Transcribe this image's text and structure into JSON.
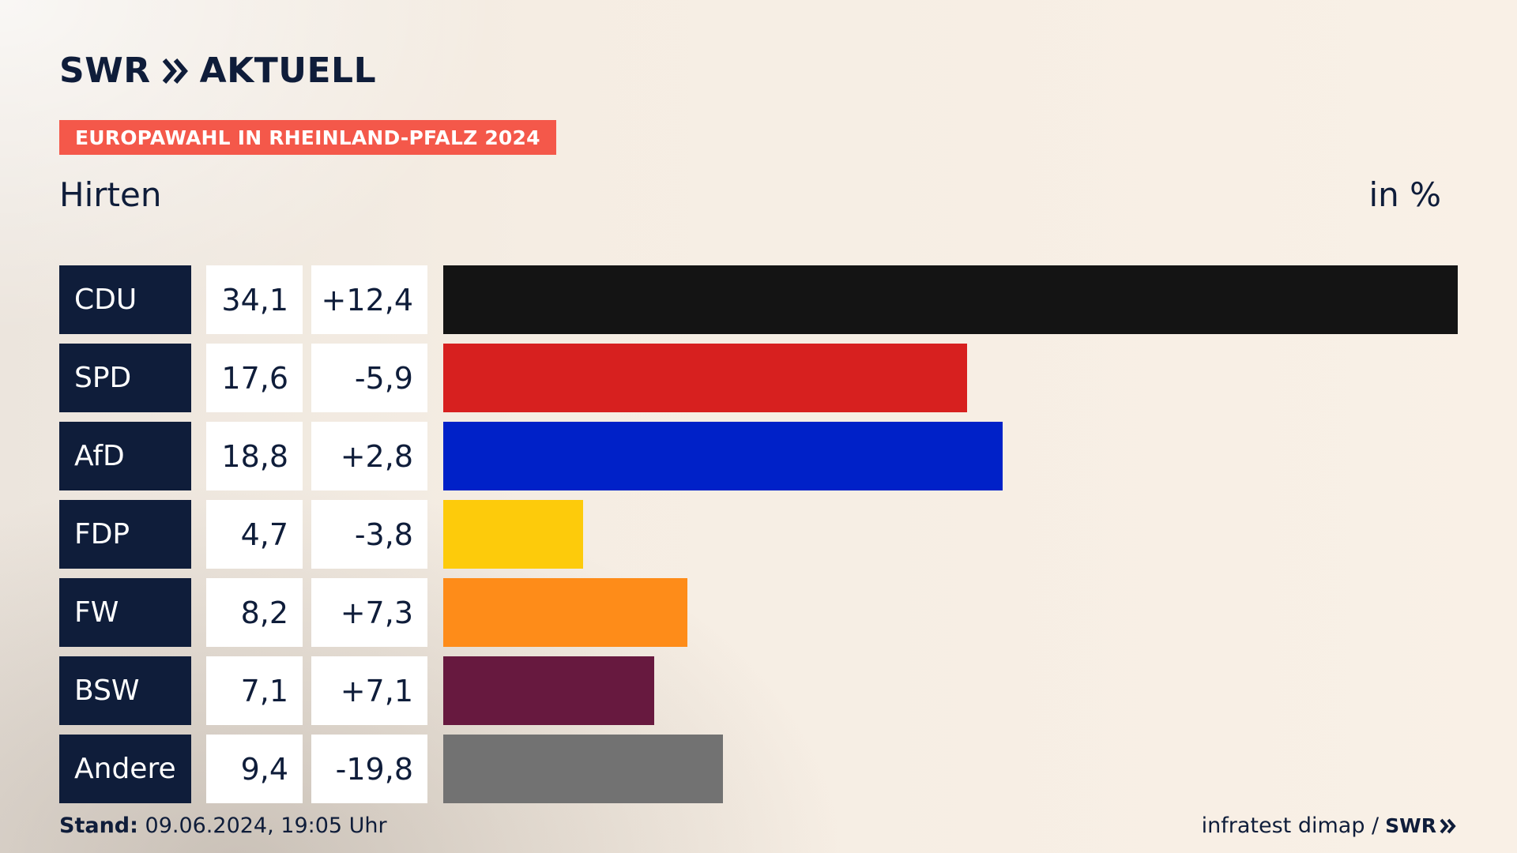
{
  "header": {
    "brand": "SWR",
    "section": "AKTUELL",
    "banner": "EUROPAWAHL IN RHEINLAND-PFALZ 2024",
    "place": "Hirten",
    "unit": "in %"
  },
  "footer": {
    "stand_label": "Stand:",
    "stand_value": "09.06.2024, 19:05 Uhr",
    "source": "infratest dimap /",
    "source_brand": "SWR"
  },
  "chart_data": {
    "type": "bar",
    "orientation": "horizontal",
    "title": "Hirten",
    "unit": "in %",
    "categories": [
      "CDU",
      "SPD",
      "AfD",
      "FDP",
      "FW",
      "BSW",
      "Andere"
    ],
    "values": [
      34.1,
      17.6,
      18.8,
      4.7,
      8.2,
      7.1,
      9.4
    ],
    "value_labels": [
      "34,1",
      "17,6",
      "18,8",
      "4,7",
      "8,2",
      "7,1",
      "9,4"
    ],
    "changes": [
      12.4,
      -5.9,
      2.8,
      -3.8,
      7.3,
      7.1,
      -19.8
    ],
    "change_labels": [
      "+12,4",
      "-5,9",
      "+2,8",
      "-3,8",
      "+7,3",
      "+7,1",
      "-19,8"
    ],
    "colors": [
      "#141414",
      "#d7201f",
      "#0021c8",
      "#fdcb0b",
      "#fe8c19",
      "#67193f",
      "#727272"
    ],
    "xlim": [
      0,
      34.1
    ],
    "grid": false,
    "legend": "none"
  }
}
